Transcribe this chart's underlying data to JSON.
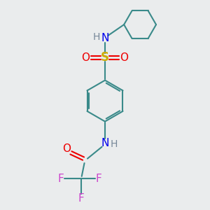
{
  "bg_color": "#eaeced",
  "atom_colors": {
    "C": "#3a8a8a",
    "N": "#0000ee",
    "O": "#ee0000",
    "S": "#ccaa00",
    "F": "#cc44cc",
    "H": "#778899"
  },
  "bond_color": "#3a8a8a",
  "figsize": [
    3.0,
    3.0
  ],
  "dpi": 100
}
